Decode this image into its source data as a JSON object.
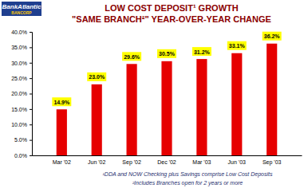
{
  "chart_data": {
    "type": "bar",
    "title": "LOW COST DEPOSIT¹ GROWTH",
    "subtitle": "\"SAME BRANCH²\" YEAR-OVER-YEAR CHANGE",
    "annotations": [
      "BankAtlantic",
      "BANCORP",
      "¹DDA and NOW Checking plus Savings comprise Low Cost Deposits",
      "²Includes Branches open for 2 years or more"
    ],
    "categories": [
      "Mar '02",
      "Jun '02",
      "Sep '02",
      "Dec '02",
      "Mar '03",
      "Jun '03",
      "Sep '03"
    ],
    "values": [
      14.9,
      23.0,
      29.6,
      30.5,
      31.2,
      33.1,
      36.2
    ],
    "value_labels": [
      "14.9%",
      "23.0%",
      "29.6%",
      "30.5%",
      "31.2%",
      "33.1%",
      "36.2%"
    ],
    "data_labels": true,
    "color": "#e60000",
    "ylim": [
      0,
      40
    ],
    "yticks": [
      {
        "value": 0,
        "label": "0.0%"
      },
      {
        "value": 5,
        "label": "5.0%"
      },
      {
        "value": 10,
        "label": "10.0%"
      },
      {
        "value": 15,
        "label": "15.0%"
      },
      {
        "value": 20,
        "label": "20.0%"
      },
      {
        "value": 25,
        "label": "25.0%"
      },
      {
        "value": 30,
        "label": "30.0%"
      },
      {
        "value": 35,
        "label": "35.0%"
      },
      {
        "value": 40,
        "label": "40.0%"
      }
    ]
  }
}
